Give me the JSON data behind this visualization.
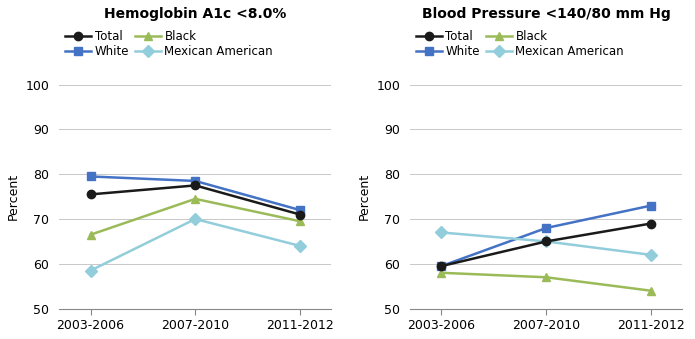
{
  "x_labels": [
    "2003-2006",
    "2007-2010",
    "2011-2012"
  ],
  "x_positions": [
    0,
    1,
    2
  ],
  "chart1": {
    "title": "Hemoglobin A1c <8.0%",
    "series": {
      "Total": {
        "values": [
          75.5,
          77.5,
          71.0
        ],
        "color": "#1a1a1a",
        "marker": "o",
        "zorder": 4
      },
      "White": {
        "values": [
          79.5,
          78.5,
          72.0
        ],
        "color": "#4472C4",
        "marker": "s",
        "zorder": 3
      },
      "Black": {
        "values": [
          66.5,
          74.5,
          69.5
        ],
        "color": "#9BBB59",
        "marker": "^",
        "zorder": 3
      },
      "Mexican American": {
        "values": [
          58.5,
          70.0,
          64.0
        ],
        "color": "#92CDDC",
        "marker": "D",
        "zorder": 3
      }
    }
  },
  "chart2": {
    "title": "Blood Pressure <140/80 mm Hg",
    "series": {
      "Total": {
        "values": [
          59.5,
          65.0,
          69.0
        ],
        "color": "#1a1a1a",
        "marker": "o",
        "zorder": 4
      },
      "White": {
        "values": [
          59.5,
          68.0,
          73.0
        ],
        "color": "#4472C4",
        "marker": "s",
        "zorder": 3
      },
      "Black": {
        "values": [
          58.0,
          57.0,
          54.0
        ],
        "color": "#9BBB59",
        "marker": "^",
        "zorder": 3
      },
      "Mexican American": {
        "values": [
          67.0,
          65.0,
          62.0
        ],
        "color": "#92CDDC",
        "marker": "D",
        "zorder": 3
      }
    }
  },
  "ylim": [
    50,
    100
  ],
  "yticks": [
    50,
    60,
    70,
    80,
    90,
    100
  ],
  "ylabel": "Percent",
  "legend_order": [
    "Total",
    "White",
    "Black",
    "Mexican American"
  ],
  "background_color": "#ffffff",
  "grid_color": "#c8c8c8",
  "linewidth": 1.8,
  "markersize": 6
}
